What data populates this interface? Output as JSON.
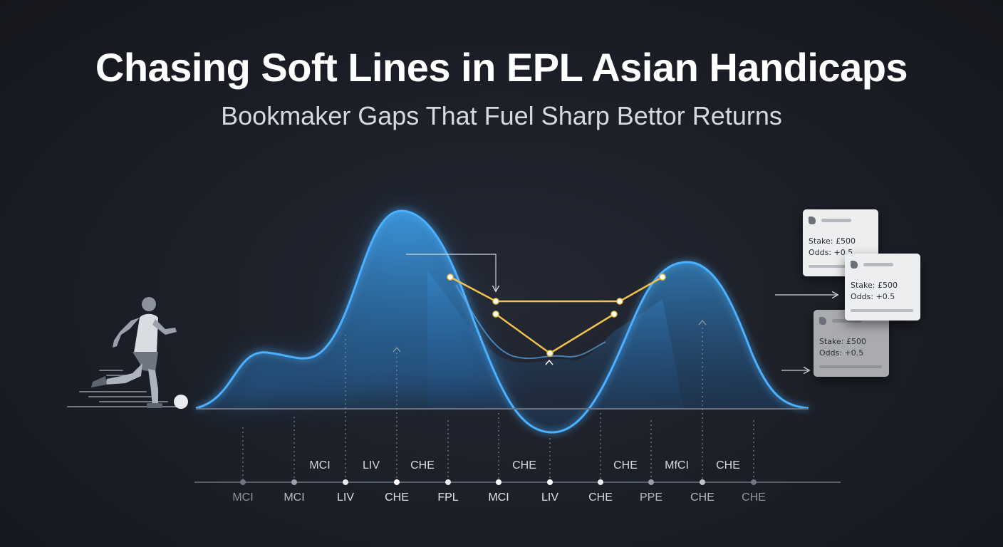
{
  "header": {
    "title": "Chasing Soft Lines in EPL Asian Handicaps",
    "subtitle": "Bookmaker Gaps That Fuel Sharp Bettor Returns"
  },
  "colors": {
    "background": "#1b1e26",
    "curve_blue": "#3fa4f0",
    "line_gold": "#e8b53a",
    "text_white": "#ffffff",
    "label_gray": "#cfd2d8"
  },
  "timeline": {
    "upper_labels": [
      "MCI",
      "LIV",
      "CHE",
      "CHE",
      "CHE",
      "MfCI",
      "CHE"
    ],
    "lower_labels": [
      "MCI",
      "MCI",
      "LIV",
      "CHE",
      "FPL",
      "MCI",
      "LIV",
      "CHE",
      "PPE",
      "CHE",
      "CHE"
    ]
  },
  "bet_slips": [
    {
      "stake": "Stake: £500",
      "odds": "Odds: +0.5",
      "icon": "premier-league-lion-icon"
    },
    {
      "stake": "Stake: £500",
      "odds": "Odds: +0.5",
      "icon": "premier-league-lion-icon"
    },
    {
      "stake": "Stake: £500",
      "odds": "Odds: +0.5",
      "icon": "premier-league-lion-icon"
    }
  ],
  "figure": {
    "icon": "football-player-kicking-icon",
    "ball_icon": "football-icon"
  }
}
